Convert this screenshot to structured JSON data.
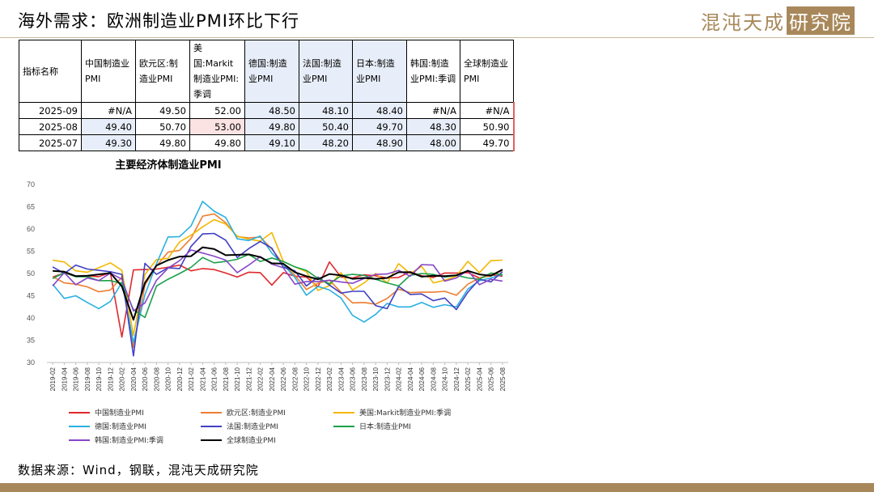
{
  "header": {
    "title": "海外需求：欧洲制造业PMI环比下行",
    "logo_text": "混沌天成",
    "logo_box_text": "研究院"
  },
  "table": {
    "headers": [
      "指标名称",
      "中国制造业PMI",
      "欧元区:制造业PMI",
      "美国:Markit制造业PMI:季调",
      "德国:制造业PMI",
      "法国:制造业PMI",
      "日本:制造业PMI",
      "韩国:制造业PMI:季调",
      "全球制造业PMI"
    ],
    "rows": [
      {
        "date": "2025-09",
        "values": [
          "#N/A",
          "49.50",
          "52.00",
          "48.50",
          "48.10",
          "48.40",
          "#N/A",
          "#N/A"
        ]
      },
      {
        "date": "2025-08",
        "values": [
          "49.40",
          "50.70",
          "53.00",
          "49.80",
          "50.40",
          "49.70",
          "48.30",
          "50.90"
        ]
      },
      {
        "date": "2025-07",
        "values": [
          "49.30",
          "49.80",
          "49.80",
          "49.10",
          "48.20",
          "48.90",
          "48.00",
          "49.70"
        ]
      }
    ]
  },
  "chart_data": {
    "type": "line",
    "title": "主要经济体制造业PMI",
    "ylim": [
      30,
      70
    ],
    "yticks": [
      "70",
      "65",
      "60",
      "55",
      "50",
      "45",
      "40",
      "35",
      "30"
    ],
    "x": [
      "2019-02",
      "2019-04",
      "2019-06",
      "2019-08",
      "2019-10",
      "2019-12",
      "2020-02",
      "2020-04",
      "2020-06",
      "2020-08",
      "2020-10",
      "2020-12",
      "2021-02",
      "2021-04",
      "2021-06",
      "2021-08",
      "2021-10",
      "2021-12",
      "2022-02",
      "2022-04",
      "2022-06",
      "2022-08",
      "2022-10",
      "2022-12",
      "2023-02",
      "2023-04",
      "2023-06",
      "2023-08",
      "2023-10",
      "2023-12",
      "2024-02",
      "2024-04",
      "2024-06",
      "2024-08",
      "2024-10",
      "2024-12",
      "2025-02",
      "2025-04",
      "2025-06",
      "2025-08"
    ],
    "series": [
      {
        "name": "中国制造业PMI",
        "color": "#e0282c",
        "values": [
          49.2,
          50.1,
          49.4,
          49.5,
          49.3,
          50.2,
          35.7,
          50.8,
          50.9,
          51.0,
          51.4,
          51.9,
          50.6,
          51.1,
          50.9,
          50.1,
          49.2,
          50.3,
          50.2,
          47.4,
          50.2,
          49.4,
          49.2,
          47.0,
          52.6,
          49.2,
          49.0,
          49.7,
          49.5,
          49.0,
          49.1,
          50.4,
          49.5,
          49.1,
          50.1,
          50.1,
          50.2,
          49.0,
          49.7,
          49.4
        ]
      },
      {
        "name": "欧元区:制造业PMI",
        "color": "#ed7d31",
        "values": [
          49.3,
          47.9,
          47.6,
          47.0,
          45.9,
          46.3,
          49.2,
          33.4,
          47.4,
          51.7,
          54.8,
          55.2,
          57.9,
          62.9,
          63.4,
          61.4,
          58.3,
          58.0,
          58.2,
          55.5,
          52.1,
          49.6,
          46.4,
          47.8,
          48.5,
          45.8,
          43.4,
          43.5,
          43.1,
          44.4,
          46.5,
          45.7,
          45.8,
          45.8,
          46.0,
          45.1,
          47.6,
          49.0,
          49.5,
          50.7
        ]
      },
      {
        "name": "美国:Markit制造业PMI:季调",
        "color": "#f2b800",
        "values": [
          53.0,
          52.6,
          50.6,
          50.3,
          51.3,
          52.4,
          50.7,
          36.1,
          49.8,
          53.1,
          53.4,
          57.1,
          58.6,
          60.5,
          62.1,
          61.1,
          58.4,
          57.7,
          57.3,
          59.2,
          52.7,
          51.5,
          50.4,
          46.2,
          47.3,
          50.2,
          46.3,
          47.9,
          50.0,
          47.9,
          52.2,
          50.0,
          51.6,
          47.9,
          48.5,
          49.4,
          52.7,
          50.2,
          52.9,
          53.0
        ]
      },
      {
        "name": "德国:制造业PMI",
        "color": "#2ab0e0",
        "values": [
          47.6,
          44.4,
          45.0,
          43.5,
          42.1,
          43.7,
          48.0,
          34.5,
          45.2,
          52.2,
          58.2,
          58.3,
          60.7,
          66.2,
          64.0,
          62.6,
          57.8,
          57.4,
          58.4,
          54.6,
          52.0,
          49.1,
          45.1,
          47.1,
          46.3,
          44.5,
          40.6,
          39.1,
          40.8,
          43.3,
          42.5,
          42.5,
          43.5,
          42.4,
          43.0,
          42.5,
          46.5,
          48.4,
          49.0,
          49.8
        ]
      },
      {
        "name": "法国:制造业PMI",
        "color": "#4140c4",
        "values": [
          51.5,
          50.0,
          51.9,
          51.0,
          50.7,
          50.4,
          49.8,
          31.5,
          52.3,
          49.8,
          51.3,
          51.1,
          56.1,
          58.9,
          59.0,
          57.5,
          53.6,
          55.6,
          57.2,
          55.7,
          51.4,
          50.6,
          47.2,
          49.2,
          47.4,
          45.6,
          46.0,
          46.0,
          42.8,
          42.1,
          47.1,
          45.3,
          45.4,
          43.9,
          44.5,
          41.9,
          45.8,
          48.7,
          48.1,
          50.4
        ]
      },
      {
        "name": "日本:制造业PMI",
        "color": "#1aa04a",
        "values": [
          48.9,
          50.2,
          49.3,
          49.3,
          48.4,
          48.4,
          47.8,
          41.9,
          40.1,
          47.2,
          48.7,
          50.0,
          51.4,
          53.6,
          52.4,
          52.7,
          53.2,
          54.3,
          52.7,
          53.5,
          52.7,
          51.5,
          50.7,
          48.9,
          47.7,
          49.5,
          49.8,
          49.6,
          48.7,
          47.9,
          47.2,
          49.6,
          50.0,
          49.8,
          49.2,
          49.6,
          49.0,
          48.7,
          50.1,
          49.7
        ]
      },
      {
        "name": "韩国:制造业PMI:季调",
        "color": "#8845c8",
        "values": [
          47.2,
          50.2,
          47.5,
          49.0,
          48.4,
          50.1,
          48.7,
          41.6,
          43.4,
          48.5,
          51.2,
          52.9,
          55.3,
          54.6,
          53.9,
          53.0,
          50.2,
          51.9,
          53.8,
          52.1,
          51.3,
          47.6,
          48.2,
          48.2,
          48.5,
          48.1,
          47.8,
          48.9,
          49.8,
          49.9,
          50.7,
          49.4,
          52.0,
          51.9,
          48.3,
          49.0,
          50.7,
          47.5,
          48.7,
          48.3
        ]
      },
      {
        "name": "全球制造业PMI",
        "color": "#000000",
        "values": [
          50.6,
          50.4,
          49.4,
          49.5,
          49.8,
          50.1,
          47.1,
          39.6,
          47.9,
          51.8,
          53.0,
          53.8,
          53.9,
          55.9,
          55.5,
          54.1,
          54.2,
          54.3,
          53.7,
          52.3,
          52.2,
          50.3,
          49.4,
          48.7,
          49.9,
          49.6,
          48.8,
          49.0,
          48.8,
          49.0,
          50.3,
          50.3,
          49.3,
          49.5,
          49.4,
          49.6,
          50.6,
          49.8,
          49.5,
          50.9
        ]
      }
    ]
  },
  "source_text": "数据来源：Wind，钢联，混沌天成研究院"
}
